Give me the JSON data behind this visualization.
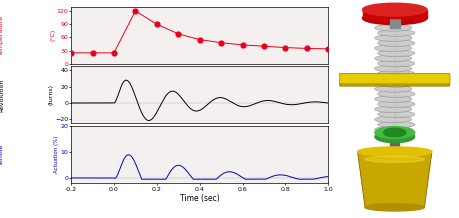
{
  "temp_x": [
    -0.2,
    -0.1,
    0.0,
    0.1,
    0.2,
    0.3,
    0.4,
    0.5,
    0.6,
    0.7,
    0.8,
    0.9,
    1.0
  ],
  "temp_y": [
    25,
    25,
    25,
    120,
    90,
    68,
    55,
    48,
    43,
    40,
    37,
    35,
    34
  ],
  "temp_color": "#e8001c",
  "temp_ylim": [
    0,
    130
  ],
  "temp_yticks": [
    0,
    30,
    60,
    90,
    120
  ],
  "temp_ylabel1": "Temperature",
  "temp_ylabel2": "(°C)",
  "rev_ylim": [
    -25,
    45
  ],
  "rev_yticks": [
    -20,
    0,
    20,
    40
  ],
  "rev_ylabel1": "Revolution",
  "rev_ylabel2": "(turns)",
  "rev_color": "#000000",
  "tens_ylim": [
    -2,
    15
  ],
  "tens_yticks": [
    0,
    10,
    20
  ],
  "tens_ylabel1": "Tensile",
  "tens_ylabel2": "Actuation (%)",
  "tens_color": "#0000cc",
  "xlim": [
    -0.2,
    1.0
  ],
  "xticks": [
    -0.2,
    0.0,
    0.2,
    0.4,
    0.6,
    0.8,
    1.0
  ],
  "xlabel": "Time (sec)",
  "bg_color": "#f5f0f0"
}
